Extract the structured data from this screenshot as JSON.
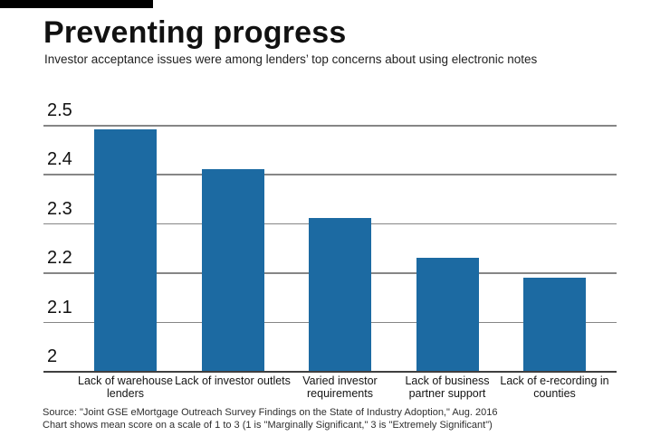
{
  "header": {
    "title": "Preventing progress",
    "subtitle": "Investor acceptance issues were among lenders’ top concerns about using electronic notes"
  },
  "chart_data": {
    "type": "bar",
    "title": "Preventing progress",
    "subtitle": "Investor acceptance issues were among lenders’ top concerns about using electronic notes",
    "categories": [
      "Lack of warehouse lenders",
      "Lack of investor outlets",
      "Varied investor requirements",
      "Lack of business partner support",
      "Lack of e-recording in counties"
    ],
    "values": [
      2.49,
      2.41,
      2.31,
      2.23,
      2.19
    ],
    "xlabel": "",
    "ylabel": "",
    "ylim": [
      2,
      2.5
    ],
    "yticks": [
      2.5,
      2.4,
      2.3,
      2.2,
      2.1,
      2
    ],
    "grid": true,
    "legend_position": "none",
    "bar_color": "#1c6aa2",
    "gridline_color": "#868686",
    "axis_line_color": "#3f3f3f",
    "scale_note": "mean score on a scale of 1 to 3"
  },
  "footer": {
    "source_line": "Source: \"Joint GSE eMortgage Outreach Survey Findings on the State of Industry Adoption,\" Aug. 2016",
    "note_line": "Chart shows mean score on a scale of 1 to 3 (1 is \"Marginally Significant,\" 3 is \"Extremely Significant\")"
  }
}
